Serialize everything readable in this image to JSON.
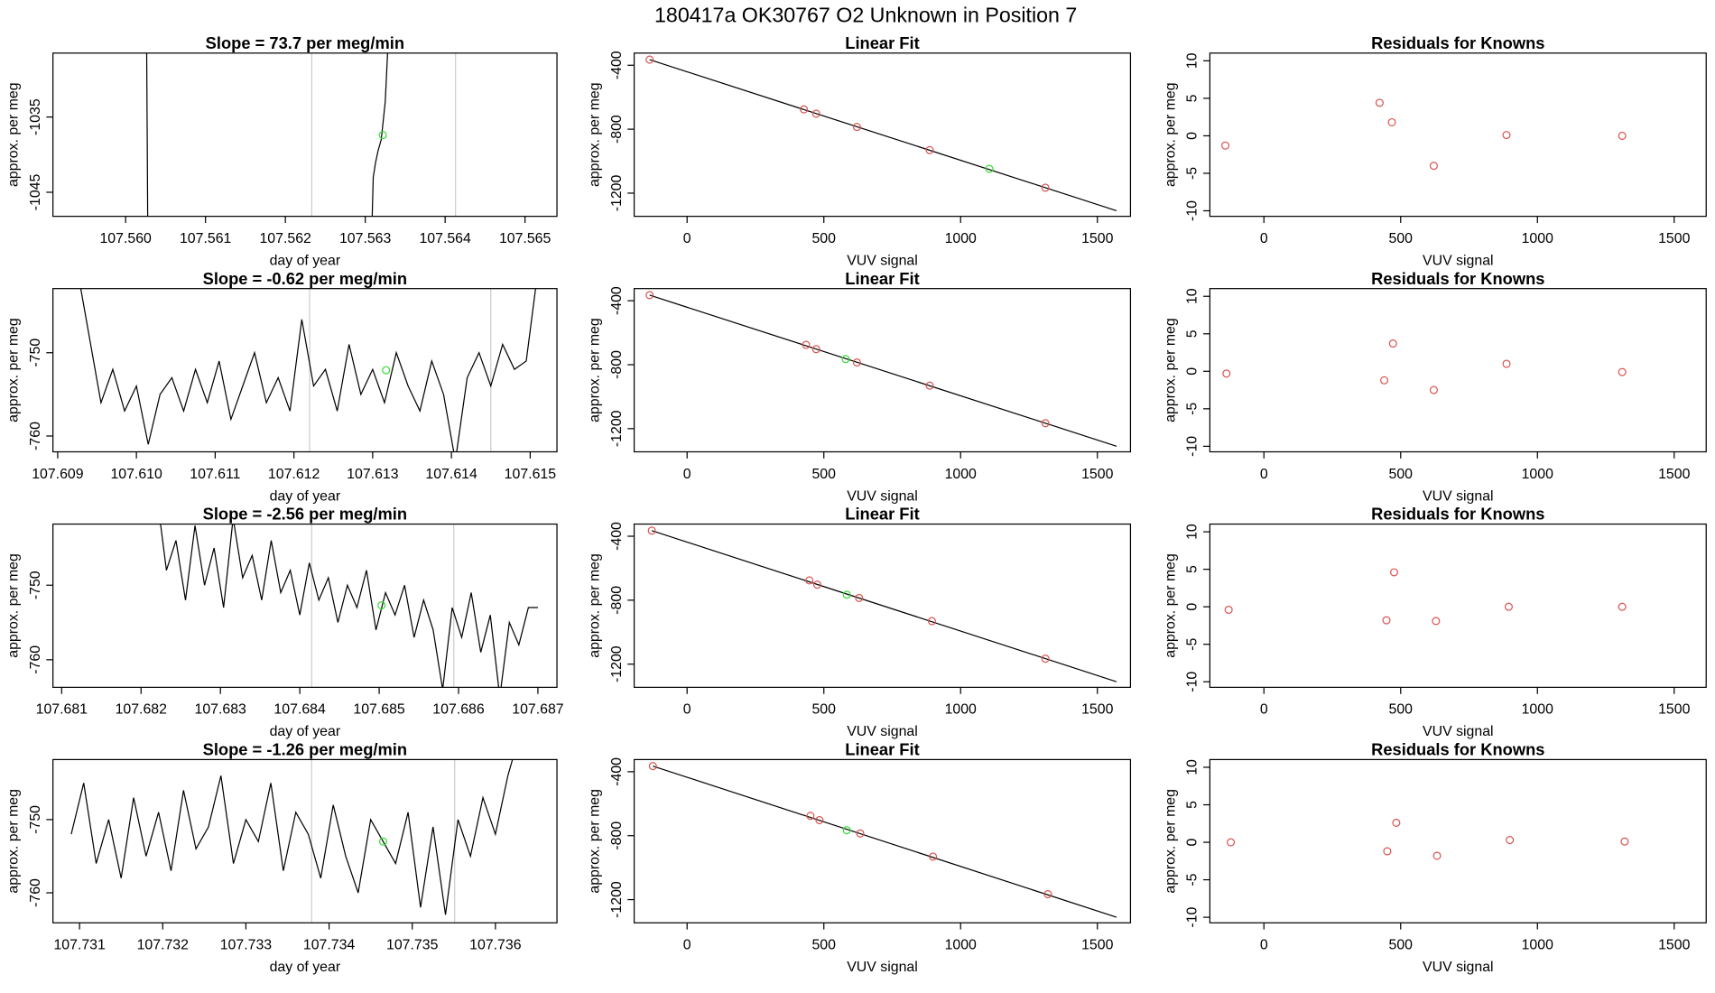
{
  "title": "180417a      OK30767    O2 Unknown in Position  7",
  "chart_data": [
    {
      "type": "line",
      "title": "Slope =  73.7  per meg/min",
      "xlabel": "day of year",
      "ylabel": "approx. per meg",
      "color": "#000000",
      "x": [
        107.56026,
        107.56028,
        107.5603,
        107.56307,
        107.5631,
        107.56313,
        107.56316,
        107.5632,
        107.56325,
        107.5633
      ],
      "values": [
        -1020,
        -1055,
        null,
        -1055,
        -1043,
        -1041,
        -1039.5,
        -1038,
        -1033,
        -1022
      ],
      "highlight": {
        "x": 107.56322,
        "value": -1037.4,
        "color": "#33dd33"
      },
      "vlines": [
        107.56233,
        107.56413
      ],
      "vline_color": "#cccccc",
      "xlim": [
        107.55909,
        107.5654
      ],
      "ylim": [
        -1048.2,
        -1026.5
      ],
      "xticks": [
        {
          "value": 107.56,
          "label": "107.560"
        },
        107.561,
        107.562,
        107.563,
        107.564,
        107.565
      ],
      "yticks": [
        -1035,
        -1045
      ]
    },
    {
      "type": "scatter",
      "title": "Linear Fit",
      "xlabel": "VUV signal",
      "ylabel": "approx. per meg",
      "series": [
        {
          "color": "#d9534f",
          "x": [
            -137,
            427,
            472,
            621,
            887,
            1310
          ],
          "values": [
            -365,
            -676,
            -703,
            -786,
            -931,
            -1166
          ]
        },
        {
          "color": "#33dd33",
          "x": [
            1105
          ],
          "values": [
            -1048
          ]
        }
      ],
      "fit_line": {
        "x": [
          -137,
          1570
        ],
        "values": [
          -365,
          -1310
        ],
        "color": "#000000"
      },
      "xlim": [
        -193.5,
        1621
      ],
      "ylim": [
        -1345,
        -324
      ],
      "xticks": [
        0,
        500,
        1000,
        1500
      ],
      "yticks": [
        -400,
        -800,
        -1200
      ]
    },
    {
      "type": "scatter",
      "title": "Residuals for Knowns",
      "xlabel": "VUV signal",
      "ylabel": "approx. per meg",
      "series": [
        {
          "color": "#d9534f",
          "x": [
            -141,
            423,
            468,
            621,
            887,
            1310
          ],
          "values": [
            -1.3,
            4.4,
            1.8,
            -4.0,
            0.1,
            0
          ]
        }
      ],
      "xlim": [
        -197.6,
        1617
      ],
      "ylim": [
        -10.74,
        11.03
      ],
      "xticks": [
        0,
        500,
        1000,
        1500
      ],
      "yticks": [
        10,
        5,
        0,
        -5,
        -10
      ]
    },
    {
      "type": "line",
      "title": "Slope =  -0.62  per meg/min",
      "xlabel": "day of year",
      "ylabel": "approx. per meg",
      "color": "#000000",
      "x": [
        107.60925,
        107.6094,
        107.60955,
        107.6097,
        107.60985,
        107.61,
        107.61015,
        107.6103,
        107.61045,
        107.6106,
        107.61075,
        107.6109,
        107.61105,
        107.6112,
        107.61135,
        107.6115,
        107.61165,
        107.6118,
        107.61195,
        107.6121,
        107.61225,
        107.6124,
        107.61255,
        107.6127,
        107.61285,
        107.613,
        107.61315,
        107.6133,
        107.61345,
        107.6136,
        107.61375,
        107.6139,
        107.61405,
        107.6142,
        107.61435,
        107.6145,
        107.61465,
        107.6148,
        107.61495,
        107.6151
      ],
      "values": [
        -740,
        -748,
        -756,
        -752,
        -757,
        -754,
        -761,
        -755,
        -753,
        -757,
        -752,
        -756,
        -751,
        -758,
        -754,
        -750,
        -756,
        -753,
        -757,
        -746,
        -754,
        -752,
        -757,
        -749,
        -755,
        -752,
        -756,
        -750,
        -754,
        -757,
        -751,
        -755,
        -763,
        -753,
        -750,
        -754,
        -749,
        -752,
        -751,
        -740
      ],
      "highlight": {
        "x": 107.61317,
        "value": -752.1,
        "color": "#33dd33"
      },
      "vlines": [
        107.6122,
        107.6145
      ],
      "vline_color": "#cccccc",
      "xlim": [
        107.60894,
        107.61534
      ],
      "ylim": [
        -761.9,
        -742.3
      ],
      "xticks": [
        107.609,
        {
          "value": 107.61,
          "label": "107.610"
        },
        107.611,
        107.612,
        107.613,
        107.614,
        107.615
      ],
      "yticks": [
        -750,
        -760
      ]
    },
    {
      "type": "scatter",
      "title": "Linear Fit",
      "xlabel": "VUV signal",
      "ylabel": "approx. per meg",
      "series": [
        {
          "color": "#d9534f",
          "x": [
            -137,
            435,
            472,
            621,
            887,
            1310
          ],
          "values": [
            -365,
            -676,
            -703,
            -786,
            -931,
            -1166
          ]
        },
        {
          "color": "#33dd33",
          "x": [
            580
          ],
          "values": [
            -765
          ]
        }
      ],
      "fit_line": {
        "x": [
          -137,
          1570
        ],
        "values": [
          -365,
          -1310
        ],
        "color": "#000000"
      },
      "xlim": [
        -193.5,
        1621
      ],
      "ylim": [
        -1345,
        -324
      ],
      "xticks": [
        0,
        500,
        1000,
        1500
      ],
      "yticks": [
        -400,
        -800,
        -1200
      ]
    },
    {
      "type": "scatter",
      "title": "Residuals for Knowns",
      "xlabel": "VUV signal",
      "ylabel": "approx. per meg",
      "series": [
        {
          "color": "#d9534f",
          "x": [
            -137,
            440,
            472,
            621,
            887,
            1310
          ],
          "values": [
            -0.3,
            -1.2,
            3.7,
            -2.5,
            1.0,
            -0.1
          ]
        }
      ],
      "xlim": [
        -197.6,
        1617
      ],
      "ylim": [
        -10.74,
        11.03
      ],
      "xticks": [
        0,
        500,
        1000,
        1500
      ],
      "yticks": [
        10,
        5,
        0,
        -5,
        -10
      ]
    },
    {
      "type": "line",
      "title": "Slope =  -2.56  per meg/min",
      "xlabel": "day of year",
      "ylabel": "approx. per meg",
      "color": "#000000",
      "x": [
        107.6822,
        107.68232,
        107.68244,
        107.68256,
        107.68268,
        107.6828,
        107.68292,
        107.68304,
        107.68316,
        107.68328,
        107.6834,
        107.68352,
        107.68364,
        107.68376,
        107.68388,
        107.684,
        107.68412,
        107.68424,
        107.68436,
        107.68448,
        107.6846,
        107.68472,
        107.68484,
        107.68496,
        107.68508,
        107.6852,
        107.68532,
        107.68544,
        107.68556,
        107.68568,
        107.6858,
        107.68592,
        107.68604,
        107.68616,
        107.68628,
        107.6864,
        107.68652,
        107.68664,
        107.68676,
        107.68688,
        107.687
      ],
      "values": [
        -738,
        -748,
        -744,
        -752,
        -742,
        -750,
        -745,
        -753,
        -741,
        -749,
        -746,
        -752,
        -744,
        -751,
        -748,
        -754,
        -747,
        -752,
        -749,
        -755,
        -750,
        -753,
        -748,
        -756,
        -751,
        -754,
        -750,
        -757,
        -752,
        -756,
        -764,
        -753,
        -757,
        -751,
        -759,
        -754,
        -765,
        -755,
        -758,
        -753,
        -753
      ],
      "highlight": {
        "x": 107.68503,
        "value": -752.7,
        "color": "#33dd33"
      },
      "vlines": [
        107.68415,
        107.68594
      ],
      "vline_color": "#cccccc",
      "xlim": [
        107.68089,
        107.68724
      ],
      "ylim": [
        -763.7,
        -741.8
      ],
      "xticks": [
        107.681,
        107.682,
        107.683,
        107.684,
        107.685,
        107.686,
        107.687
      ],
      "yticks": [
        -750,
        -760
      ]
    },
    {
      "type": "scatter",
      "title": "Linear Fit",
      "xlabel": "VUV signal",
      "ylabel": "approx. per meg",
      "series": [
        {
          "color": "#d9534f",
          "x": [
            -129,
            447,
            476,
            629,
            895,
            1310
          ],
          "values": [
            -365,
            -676,
            -703,
            -786,
            -931,
            -1166
          ]
        },
        {
          "color": "#33dd33",
          "x": [
            584
          ],
          "values": [
            -766
          ]
        }
      ],
      "fit_line": {
        "x": [
          -129,
          1570
        ],
        "values": [
          -365,
          -1310
        ],
        "color": "#000000"
      },
      "xlim": [
        -193.5,
        1621
      ],
      "ylim": [
        -1345,
        -324
      ],
      "xticks": [
        0,
        500,
        1000,
        1500
      ],
      "yticks": [
        -400,
        -800,
        -1200
      ]
    },
    {
      "type": "scatter",
      "title": "Residuals for Knowns",
      "xlabel": "VUV signal",
      "ylabel": "approx. per meg",
      "series": [
        {
          "color": "#d9534f",
          "x": [
            -129,
            448,
            476,
            629,
            895,
            1310
          ],
          "values": [
            -0.4,
            -1.8,
            4.6,
            -1.9,
            0,
            0
          ]
        }
      ],
      "xlim": [
        -197.6,
        1617
      ],
      "ylim": [
        -10.74,
        11.03
      ],
      "xticks": [
        0,
        500,
        1000,
        1500
      ],
      "yticks": [
        10,
        5,
        0,
        -5,
        -10
      ]
    },
    {
      "type": "line",
      "title": "Slope =  -1.26  per meg/min",
      "xlabel": "day of year",
      "ylabel": "approx. per meg",
      "color": "#000000",
      "x": [
        107.7309,
        107.73105,
        107.7312,
        107.73135,
        107.7315,
        107.73165,
        107.7318,
        107.73195,
        107.7321,
        107.73225,
        107.7324,
        107.73255,
        107.7327,
        107.73285,
        107.733,
        107.73315,
        107.7333,
        107.73345,
        107.7336,
        107.73375,
        107.7339,
        107.73405,
        107.7342,
        107.73435,
        107.7345,
        107.73465,
        107.7348,
        107.73495,
        107.7351,
        107.73525,
        107.7354,
        107.73555,
        107.7357,
        107.73585,
        107.736,
        107.73615,
        107.7363
      ],
      "values": [
        -752,
        -745,
        -756,
        -750,
        -758,
        -747,
        -755,
        -749,
        -757,
        -746,
        -754,
        -751,
        -744,
        -756,
        -750,
        -753,
        -745,
        -757,
        -749,
        -752,
        -758,
        -748,
        -755,
        -760,
        -750,
        -753,
        -756,
        -749,
        -762,
        -751,
        -763,
        -750,
        -755,
        -747,
        -752,
        -744,
        -738
      ],
      "highlight": {
        "x": 107.73465,
        "value": -753.0,
        "color": "#33dd33"
      },
      "vlines": [
        107.73379,
        107.73551
      ],
      "vline_color": "#cccccc",
      "xlim": [
        107.73068,
        107.73674
      ],
      "ylim": [
        -764.1,
        -741.8
      ],
      "xticks": [
        107.731,
        107.732,
        107.733,
        107.734,
        107.735,
        107.736
      ],
      "yticks": [
        -750,
        -760
      ]
    },
    {
      "type": "scatter",
      "title": "Linear Fit",
      "xlabel": "VUV signal",
      "ylabel": "approx. per meg",
      "series": [
        {
          "color": "#d9534f",
          "x": [
            -125,
            451,
            484,
            633,
            899,
            1319
          ],
          "values": [
            -365,
            -676,
            -703,
            -786,
            -931,
            -1166
          ]
        },
        {
          "color": "#33dd33",
          "x": [
            584
          ],
          "values": [
            -766
          ]
        }
      ],
      "fit_line": {
        "x": [
          -125,
          1570
        ],
        "values": [
          -365,
          -1310
        ],
        "color": "#000000"
      },
      "xlim": [
        -193.5,
        1621
      ],
      "ylim": [
        -1345,
        -324
      ],
      "xticks": [
        0,
        500,
        1000,
        1500
      ],
      "yticks": [
        -400,
        -800,
        -1200
      ]
    },
    {
      "type": "scatter",
      "title": "Residuals for Knowns",
      "xlabel": "VUV signal",
      "ylabel": "approx. per meg",
      "series": [
        {
          "color": "#d9534f",
          "x": [
            -121,
            451,
            484,
            633,
            899,
            1319
          ],
          "values": [
            0,
            -1.2,
            2.6,
            -1.8,
            0.3,
            0.1
          ]
        }
      ],
      "xlim": [
        -197.6,
        1617
      ],
      "ylim": [
        -10.74,
        11.03
      ],
      "xticks": [
        0,
        500,
        1000,
        1500
      ],
      "yticks": [
        10,
        5,
        0,
        -5,
        -10
      ]
    }
  ]
}
